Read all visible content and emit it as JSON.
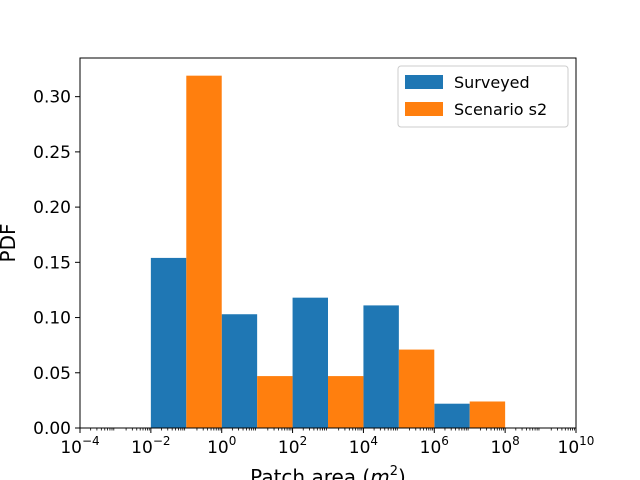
{
  "chart_data": {
    "type": "bar",
    "title": "",
    "xlabel_prefix": "Patch area (",
    "xlabel_var": "m",
    "xlabel_sup": "2",
    "xlabel_suffix": ")",
    "ylabel": "PDF",
    "x_scale": "log",
    "xlim": [
      0.0001,
      10000000000
    ],
    "ylim": [
      0,
      0.335
    ],
    "x_ticks": [
      {
        "exp": -4,
        "base": "10",
        "sup": "−4"
      },
      {
        "exp": -2,
        "base": "10",
        "sup": "−2"
      },
      {
        "exp": 0,
        "base": "10",
        "sup": "0"
      },
      {
        "exp": 2,
        "base": "10",
        "sup": "2"
      },
      {
        "exp": 4,
        "base": "10",
        "sup": "4"
      },
      {
        "exp": 6,
        "base": "10",
        "sup": "6"
      },
      {
        "exp": 8,
        "base": "10",
        "sup": "8"
      },
      {
        "exp": 10,
        "base": "10",
        "sup": "10"
      }
    ],
    "y_ticks": [
      {
        "value": 0.0,
        "label": "0.00"
      },
      {
        "value": 0.05,
        "label": "0.05"
      },
      {
        "value": 0.1,
        "label": "0.10"
      },
      {
        "value": 0.15,
        "label": "0.15"
      },
      {
        "value": 0.2,
        "label": "0.20"
      },
      {
        "value": 0.25,
        "label": "0.25"
      },
      {
        "value": 0.3,
        "label": "0.30"
      }
    ],
    "bin_edges": [
      0.01,
      1,
      100,
      10000,
      1000000,
      100000000
    ],
    "series": [
      {
        "name": "Surveyed",
        "color": "#1f77b4",
        "values": [
          0.154,
          0.103,
          0.118,
          0.111,
          0.022
        ]
      },
      {
        "name": "Scenario s2",
        "color": "#ff7f0e",
        "values": [
          0.319,
          0.047,
          0.047,
          0.071,
          0.024
        ]
      }
    ],
    "grid": false,
    "legend_position": "top-right"
  }
}
